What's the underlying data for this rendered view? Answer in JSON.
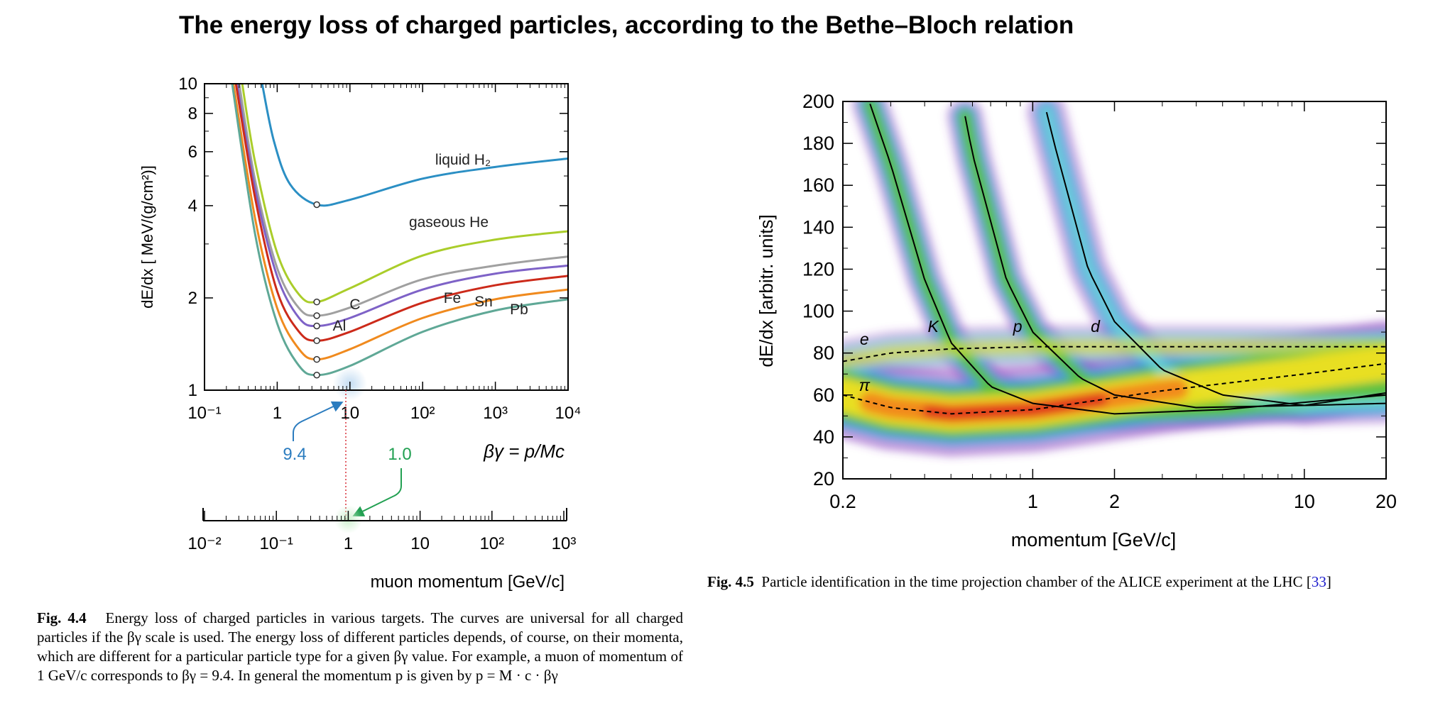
{
  "page_title": "The energy loss of charged particles, according to the Bethe–Bloch relation",
  "chart_data": [
    {
      "type": "line",
      "id": "fig44",
      "ylabel": "dE/dx [ MeV/(g/cm²)]",
      "xlabel": "βγ = p/Mc",
      "xscale": "log",
      "yscale": "log",
      "xlim": [
        0.1,
        10000
      ],
      "ylim": [
        1,
        10
      ],
      "xticks": [
        "10⁻¹",
        "1",
        "10",
        "10²",
        "10³",
        "10⁴"
      ],
      "yticks": [
        "1",
        "2",
        "4",
        "6",
        "8",
        "10"
      ],
      "series": [
        {
          "name": "liquid H₂",
          "color": "#2b8fc4",
          "minimum": [
            3.5,
            4.03
          ],
          "points": [
            [
              0.62,
              10
            ],
            [
              0.9,
              6.5
            ],
            [
              1.5,
              4.7
            ],
            [
              3.5,
              4.03
            ],
            [
              10,
              4.18
            ],
            [
              100,
              4.9
            ],
            [
              1000,
              5.35
            ],
            [
              10000,
              5.7
            ]
          ]
        },
        {
          "name": "gaseous He",
          "color": "#aacd2a",
          "minimum": [
            3.5,
            1.94
          ],
          "points": [
            [
              0.33,
              10
            ],
            [
              0.5,
              5.5
            ],
            [
              1,
              2.8
            ],
            [
              2,
              2.05
            ],
            [
              3.5,
              1.94
            ],
            [
              10,
              2.15
            ],
            [
              100,
              2.75
            ],
            [
              1000,
              3.1
            ],
            [
              10000,
              3.3
            ]
          ]
        },
        {
          "name": "C",
          "color": "#a0a0a0",
          "minimum": [
            3.5,
            1.75
          ],
          "points": [
            [
              0.3,
              10
            ],
            [
              0.5,
              4.8
            ],
            [
              1,
              2.5
            ],
            [
              2,
              1.85
            ],
            [
              3.5,
              1.75
            ],
            [
              10,
              1.86
            ],
            [
              100,
              2.3
            ],
            [
              1000,
              2.55
            ],
            [
              10000,
              2.73
            ]
          ]
        },
        {
          "name": "Al",
          "color": "#7e62c7",
          "minimum": [
            3.5,
            1.62
          ],
          "points": [
            [
              0.28,
              10
            ],
            [
              0.5,
              4.5
            ],
            [
              1,
              2.35
            ],
            [
              2,
              1.72
            ],
            [
              3.5,
              1.62
            ],
            [
              10,
              1.72
            ],
            [
              100,
              2.13
            ],
            [
              1000,
              2.4
            ],
            [
              10000,
              2.55
            ]
          ]
        },
        {
          "name": "Fe",
          "color": "#cc2a1a",
          "minimum": [
            3.5,
            1.45
          ],
          "points": [
            [
              0.27,
              10
            ],
            [
              0.5,
              4.2
            ],
            [
              1,
              2.1
            ],
            [
              2,
              1.55
            ],
            [
              3.5,
              1.45
            ],
            [
              10,
              1.55
            ],
            [
              100,
              1.93
            ],
            [
              1000,
              2.2
            ],
            [
              10000,
              2.36
            ]
          ]
        },
        {
          "name": "Sn",
          "color": "#f08a1e",
          "minimum": [
            3.5,
            1.26
          ],
          "points": [
            [
              0.25,
              10
            ],
            [
              0.5,
              3.6
            ],
            [
              1,
              1.85
            ],
            [
              2,
              1.36
            ],
            [
              3.5,
              1.26
            ],
            [
              10,
              1.36
            ],
            [
              100,
              1.72
            ],
            [
              1000,
              1.98
            ],
            [
              10000,
              2.13
            ]
          ]
        },
        {
          "name": "Pb",
          "color": "#5fa896",
          "minimum": [
            3.5,
            1.12
          ],
          "points": [
            [
              0.24,
              10
            ],
            [
              0.5,
              3.2
            ],
            [
              1,
              1.65
            ],
            [
              2,
              1.2
            ],
            [
              3.5,
              1.12
            ],
            [
              10,
              1.2
            ],
            [
              100,
              1.55
            ],
            [
              1000,
              1.82
            ],
            [
              10000,
              1.98
            ]
          ]
        }
      ],
      "annotations": {
        "bg_value": "9.4",
        "p_value": "1.0"
      },
      "muon_axis": {
        "label": "muon momentum [GeV/c]",
        "xlim": [
          0.01,
          1000
        ],
        "ticks": [
          "10⁻²",
          "10⁻¹",
          "1",
          "10",
          "10²",
          "10³"
        ]
      }
    },
    {
      "type": "heatmap",
      "id": "fig45",
      "ylabel": "dE/dx [arbitr. units]",
      "xlabel": "momentum [GeV/c]",
      "xscale": "log",
      "xlim": [
        0.2,
        20
      ],
      "ylim": [
        20,
        200
      ],
      "xticks": [
        "0.2",
        "1",
        "2",
        "10",
        "20"
      ],
      "yticks": [
        "20",
        "40",
        "60",
        "80",
        "100",
        "120",
        "140",
        "160",
        "180",
        "200"
      ],
      "bands": [
        {
          "name": "e",
          "dashed": true,
          "points": [
            [
              0.2,
              76
            ],
            [
              0.3,
              80
            ],
            [
              0.5,
              82
            ],
            [
              1,
              83
            ],
            [
              20,
              83
            ]
          ]
        },
        {
          "name": "π",
          "dashed": true,
          "points": [
            [
              0.2,
              60
            ],
            [
              0.3,
              54
            ],
            [
              0.5,
              51
            ],
            [
              1,
              53
            ],
            [
              3,
              62
            ],
            [
              10,
              70
            ],
            [
              20,
              75
            ]
          ]
        },
        {
          "name": "K",
          "dashed": false,
          "points": [
            [
              0.25,
              200
            ],
            [
              0.3,
              170
            ],
            [
              0.4,
              115
            ],
            [
              0.5,
              85
            ],
            [
              0.7,
              64
            ],
            [
              1,
              56
            ],
            [
              2,
              51
            ],
            [
              5,
              53
            ],
            [
              20,
              60
            ]
          ]
        },
        {
          "name": "p",
          "dashed": false,
          "points": [
            [
              0.55,
              200
            ],
            [
              0.6,
              175
            ],
            [
              0.8,
              115
            ],
            [
              1,
              90
            ],
            [
              1.5,
              68
            ],
            [
              2,
              60
            ],
            [
              4,
              54
            ],
            [
              10,
              55
            ],
            [
              20,
              61
            ]
          ]
        },
        {
          "name": "d",
          "dashed": false,
          "points": [
            [
              1.1,
              200
            ],
            [
              1.2,
              180
            ],
            [
              1.6,
              120
            ],
            [
              2,
              95
            ],
            [
              3,
              72
            ],
            [
              5,
              60
            ],
            [
              10,
              55
            ],
            [
              20,
              56
            ]
          ]
        }
      ]
    }
  ],
  "captions": {
    "fig44_label": "Fig. 4.4",
    "fig44_text": "Energy loss of charged particles in various targets. The curves are universal for all charged particles if the βγ scale is used. The energy loss of different particles depends, of course, on their momenta, which are different for a particular particle type for a given βγ value. For example, a muon of momentum of 1 GeV/c corresponds to βγ = 9.4. In general the momentum p is given by p = M · c · βγ",
    "fig45_label": "Fig. 4.5",
    "fig45_text": "Particle identification in the time projection chamber of the ALICE experiment at the LHC [",
    "fig45_ref": "33",
    "fig45_end": "]"
  }
}
